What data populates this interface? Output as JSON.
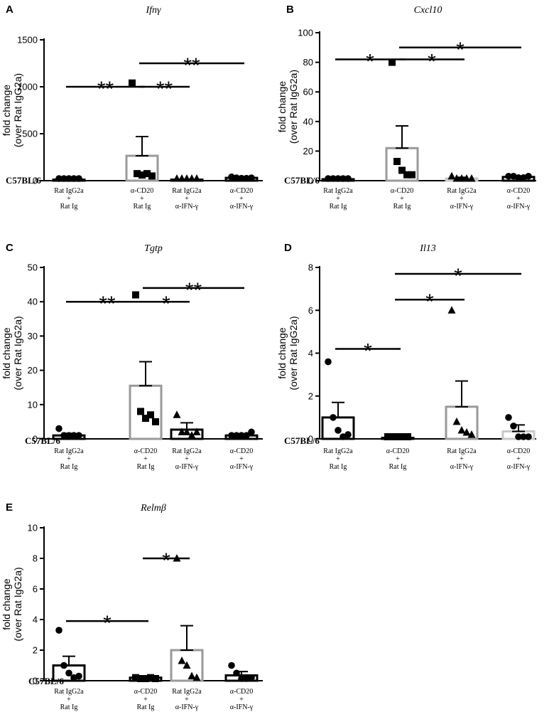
{
  "strain_label": "C57BL/6",
  "categories": [
    [
      "Rat IgG2a",
      "+",
      "Rat Ig"
    ],
    [
      "α-CD20",
      "+",
      "Rat Ig"
    ],
    [
      "Rat IgG2a",
      "+",
      "α-IFN-γ"
    ],
    [
      "α-CD20",
      "+",
      "α-IFN-γ"
    ]
  ],
  "ylabel_lines": [
    "fold change",
    "(over Rat IgG2a)"
  ],
  "colors": {
    "black": "#000000",
    "grey": "#9a9a9a",
    "lightgrey": "#c8c8c8"
  },
  "chart_data": [
    {
      "panel": "A",
      "type": "bar",
      "title": "Ifnγ",
      "ylabel": "fold change (over Rat IgG2a)",
      "ylim": [
        0,
        1500
      ],
      "yticks": [
        0,
        500,
        1000,
        1500
      ],
      "categories": [
        "Rat IgG2a + Rat Ig",
        "α-CD20 + Rat Ig",
        "Rat IgG2a + α-IFN-γ",
        "α-CD20 + α-IFN-γ"
      ],
      "values": [
        1,
        265,
        2,
        30
      ],
      "sem": [
        0.5,
        205,
        1,
        6
      ],
      "bar_colors": [
        "black",
        "grey",
        "black",
        "black"
      ],
      "markers": [
        "circle",
        "square",
        "triangle",
        "circle"
      ],
      "points": [
        [
          1,
          1,
          1,
          1,
          1
        ],
        [
          1040,
          75,
          60,
          75,
          50
        ],
        [
          2,
          2,
          2,
          2,
          2
        ],
        [
          40,
          30,
          25,
          25,
          30
        ]
      ],
      "significance": [
        {
          "from": 0,
          "to": 1,
          "label": "**",
          "y": 1000
        },
        {
          "from": 1,
          "to": 2,
          "label": "**",
          "y": 1000
        },
        {
          "from": 1,
          "to": 3,
          "label": "**",
          "y": 1250
        }
      ]
    },
    {
      "panel": "B",
      "type": "bar",
      "title": "Cxcl10",
      "ylabel": "fold change (over Rat IgG2a)",
      "ylim": [
        0,
        100
      ],
      "yticks": [
        0,
        20,
        40,
        60,
        80,
        100
      ],
      "categories": [
        "Rat IgG2a + Rat Ig",
        "α-CD20 + Rat Ig",
        "Rat IgG2a + α-IFN-γ",
        "α-CD20 + α-IFN-γ"
      ],
      "values": [
        1,
        22,
        1.5,
        2.5
      ],
      "sem": [
        0.3,
        15,
        0.8,
        0.6
      ],
      "bar_colors": [
        "black",
        "grey",
        "lightgrey",
        "black"
      ],
      "markers": [
        "circle",
        "square",
        "triangle",
        "circle"
      ],
      "points": [
        [
          1,
          1,
          1,
          1,
          1
        ],
        [
          80,
          13,
          7,
          4,
          4
        ],
        [
          3,
          1,
          1,
          1,
          1
        ],
        [
          3,
          3,
          2,
          2,
          3
        ]
      ],
      "significance": [
        {
          "from": 0,
          "to": 1,
          "label": "*",
          "y": 82
        },
        {
          "from": 1,
          "to": 2,
          "label": "*",
          "y": 82
        },
        {
          "from": 1,
          "to": 3,
          "label": "*",
          "y": 90
        }
      ]
    },
    {
      "panel": "C",
      "type": "bar",
      "title": "Tgtp",
      "ylabel": "fold change (over Rat IgG2a)",
      "ylim": [
        0,
        50
      ],
      "yticks": [
        0,
        10,
        20,
        30,
        40,
        50
      ],
      "categories": [
        "Rat IgG2a + Rat Ig",
        "α-CD20 + Rat Ig",
        "Rat IgG2a + α-IFN-γ",
        "α-CD20 + α-IFN-γ"
      ],
      "values": [
        1,
        15.5,
        2.7,
        1
      ],
      "sem": [
        0.6,
        7,
        2,
        0.4
      ],
      "bar_colors": [
        "black",
        "grey",
        "black",
        "black"
      ],
      "markers": [
        "circle",
        "square",
        "triangle",
        "circle"
      ],
      "points": [
        [
          3,
          1,
          1,
          1,
          1
        ],
        [
          42,
          8,
          6,
          7,
          5
        ],
        [
          7,
          2,
          2,
          1,
          2
        ],
        [
          1,
          1,
          1,
          1,
          2
        ]
      ],
      "significance": [
        {
          "from": 0,
          "to": 1,
          "label": "**",
          "y": 40
        },
        {
          "from": 1,
          "to": 2,
          "label": "*",
          "y": 40
        },
        {
          "from": 1,
          "to": 3,
          "label": "**",
          "y": 44
        }
      ]
    },
    {
      "panel": "D",
      "type": "bar",
      "title": "Il13",
      "ylabel": "fold change (over Rat IgG2a)",
      "ylim": [
        0,
        8
      ],
      "yticks": [
        0,
        2,
        4,
        6,
        8
      ],
      "categories": [
        "Rat IgG2a + Rat Ig",
        "α-CD20 + Rat Ig",
        "Rat IgG2a + α-IFN-γ",
        "α-CD20 + α-IFN-γ"
      ],
      "values": [
        1,
        0.05,
        1.5,
        0.35
      ],
      "sem": [
        0.7,
        0.02,
        1.2,
        0.3
      ],
      "bar_colors": [
        "black",
        "black",
        "grey",
        "lightgrey"
      ],
      "markers": [
        "circle",
        "square",
        "triangle",
        "circle"
      ],
      "points": [
        [
          3.6,
          1,
          0.4,
          0.1,
          0.2
        ],
        [
          0.05,
          0.05,
          0.05,
          0.05,
          0.05
        ],
        [
          6,
          0.8,
          0.4,
          0.3,
          0.2
        ],
        [
          1,
          0.6,
          0.1,
          0.1,
          0.1
        ]
      ],
      "significance": [
        {
          "from": 0,
          "to": 1,
          "label": "*",
          "y": 4.2
        },
        {
          "from": 1,
          "to": 2,
          "label": "*",
          "y": 6.5
        },
        {
          "from": 1,
          "to": 3,
          "label": "*",
          "y": 7.7
        }
      ]
    },
    {
      "panel": "E",
      "type": "bar",
      "title": "Relmβ",
      "ylabel": "fold change (over Rat IgG2a)",
      "ylim": [
        0,
        10
      ],
      "yticks": [
        0,
        2,
        4,
        6,
        8,
        10
      ],
      "categories": [
        "Rat IgG2a + Rat Ig",
        "α-CD20 + Rat Ig",
        "Rat IgG2a + α-IFN-γ",
        "α-CD20 + α-IFN-γ"
      ],
      "values": [
        1,
        0.2,
        2,
        0.35
      ],
      "sem": [
        0.6,
        0.05,
        1.6,
        0.25
      ],
      "bar_colors": [
        "black",
        "black",
        "grey",
        "black"
      ],
      "markers": [
        "circle",
        "square",
        "triangle",
        "circle"
      ],
      "points": [
        [
          3.3,
          1,
          0.5,
          0.2,
          0.3
        ],
        [
          0.2,
          0.1,
          0.1,
          0.2,
          0.1
        ],
        [
          8,
          1.3,
          1,
          0.3,
          0.2
        ],
        [
          1,
          0.5,
          0.1,
          0.1,
          0.2
        ]
      ],
      "significance": [
        {
          "from": 0,
          "to": 1,
          "label": "*",
          "y": 3.9
        },
        {
          "from": 1,
          "to": 2,
          "label": "*",
          "y": 8
        }
      ]
    }
  ]
}
